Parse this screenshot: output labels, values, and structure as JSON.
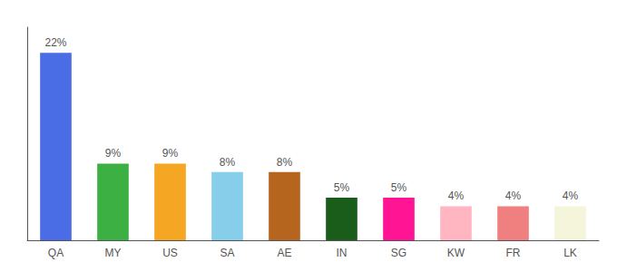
{
  "chart_data": {
    "type": "bar",
    "categories": [
      "QA",
      "MY",
      "US",
      "SA",
      "AE",
      "IN",
      "SG",
      "KW",
      "FR",
      "LK"
    ],
    "values": [
      22,
      9,
      9,
      8,
      8,
      5,
      5,
      4,
      4,
      4
    ],
    "value_labels": [
      "22%",
      "9%",
      "9%",
      "8%",
      "8%",
      "5%",
      "5%",
      "4%",
      "4%",
      "4%"
    ],
    "colors": [
      "#4a6de5",
      "#3cb043",
      "#f5a623",
      "#87ceeb",
      "#b5651d",
      "#1a5c1a",
      "#ff1493",
      "#ffb6c1",
      "#f08080",
      "#f5f5dc"
    ],
    "ylim": [
      0,
      25
    ],
    "grid": false,
    "data_labels": true,
    "tick_labels": "x"
  }
}
